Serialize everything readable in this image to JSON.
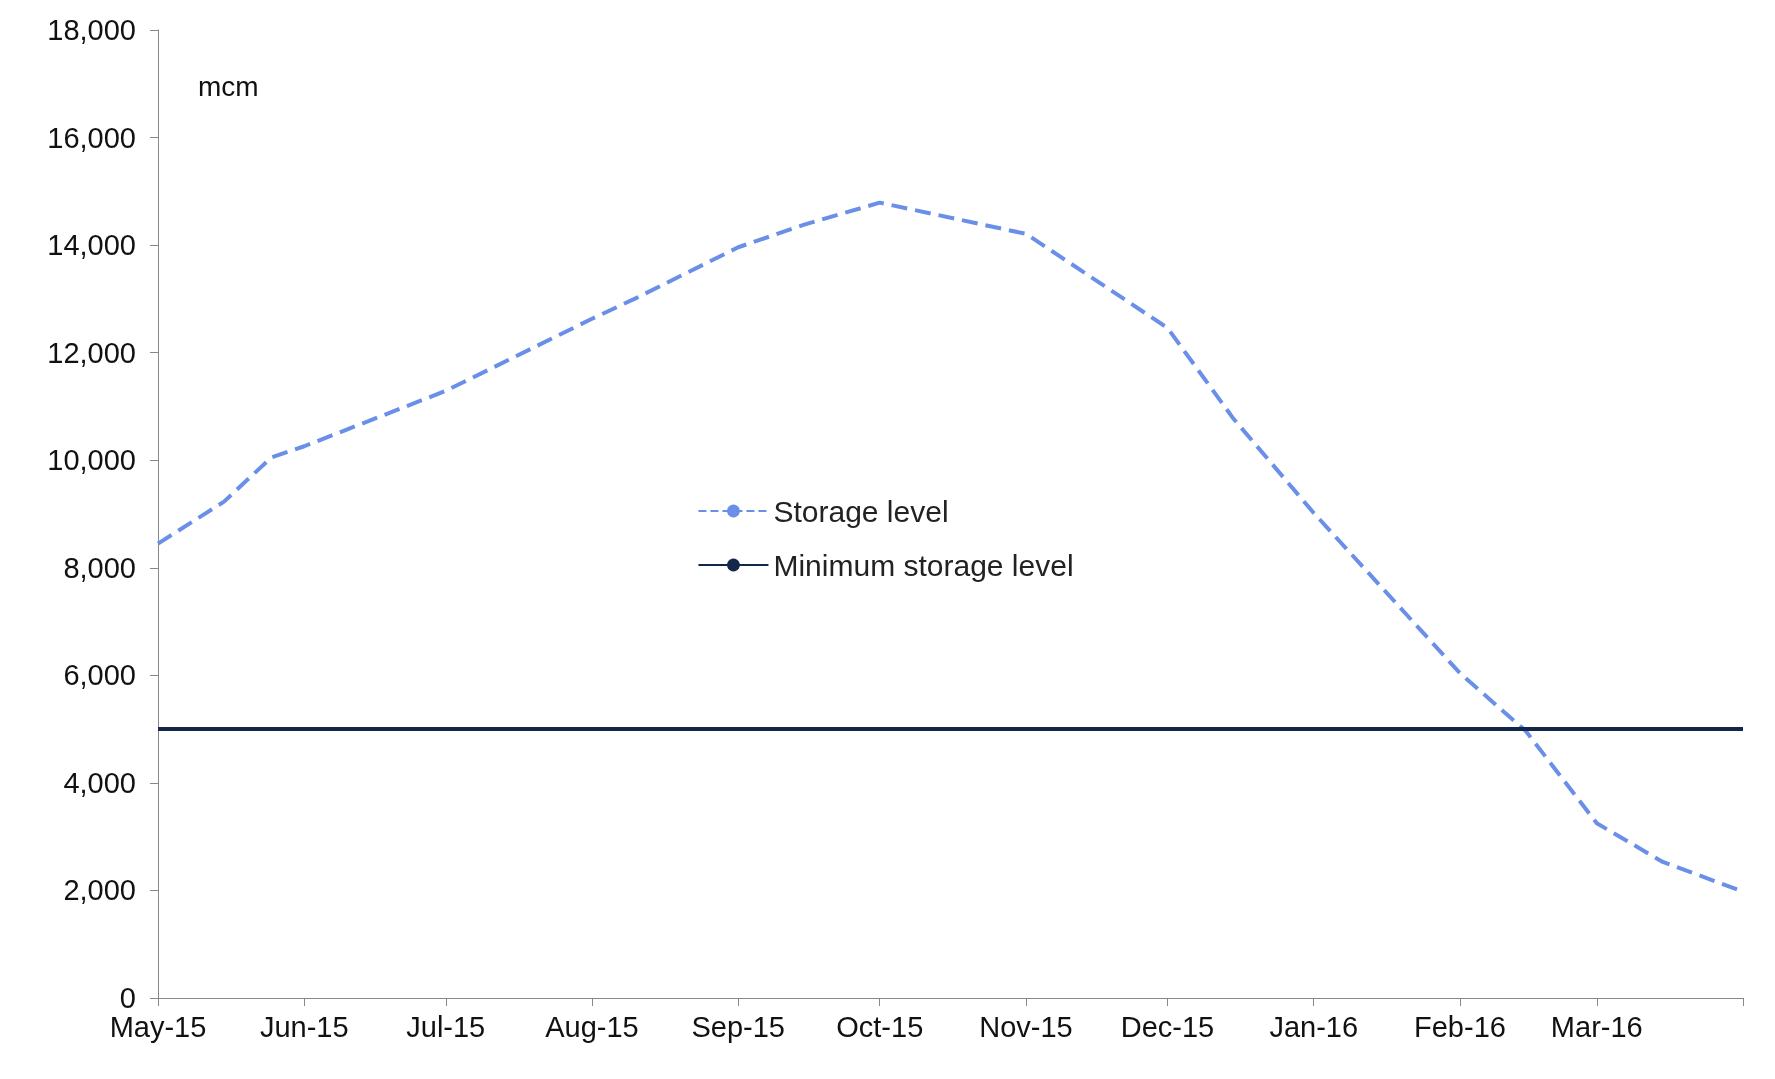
{
  "chart_data": {
    "type": "line",
    "ylabel": "mcm",
    "series": [
      {
        "name": "Storage level",
        "color": "#6a8fe8",
        "line_style": "dashed",
        "x": [
          "2015-05-01",
          "2015-05-15",
          "2015-05-25",
          "2015-06-01",
          "2015-07-01",
          "2015-08-01",
          "2015-08-10",
          "2015-09-01",
          "2015-09-15",
          "2015-10-01",
          "2015-11-01",
          "2015-12-01",
          "2015-12-15",
          "2016-01-01",
          "2016-02-01",
          "2016-02-15",
          "2016-03-01",
          "2016-03-15",
          "2016-04-01"
        ],
        "values": [
          8450,
          9230,
          10050,
          10260,
          11290,
          12630,
          13000,
          13960,
          14380,
          14790,
          14210,
          12460,
          10770,
          9020,
          6040,
          4960,
          3250,
          2530,
          1980
        ]
      },
      {
        "name": "Minimum storage level",
        "color": "#14264a",
        "line_style": "solid",
        "x": [
          "2015-05-01",
          "2016-04-01"
        ],
        "values": [
          5000,
          5000
        ]
      }
    ],
    "marker": "none",
    "grid": false,
    "legend": "center",
    "xlim": [
      "2015-05-01",
      "2016-04-01"
    ],
    "xticks": [
      {
        "value": "2015-05-01",
        "label": "May-15"
      },
      {
        "value": "2015-06-01",
        "label": "Jun-15"
      },
      {
        "value": "2015-07-01",
        "label": "Jul-15"
      },
      {
        "value": "2015-08-01",
        "label": "Aug-15"
      },
      {
        "value": "2015-09-01",
        "label": "Sep-15"
      },
      {
        "value": "2015-10-01",
        "label": "Oct-15"
      },
      {
        "value": "2015-11-01",
        "label": "Nov-15"
      },
      {
        "value": "2015-12-01",
        "label": "Dec-15"
      },
      {
        "value": "2016-01-01",
        "label": "Jan-16"
      },
      {
        "value": "2016-02-01",
        "label": "Feb-16"
      },
      {
        "value": "2016-03-01",
        "label": "Mar-16"
      },
      {
        "value": "2016-04-01",
        "label": null
      }
    ],
    "ylim": [
      0,
      18000
    ],
    "yticks": [
      {
        "value": 0,
        "label": "0"
      },
      {
        "value": 2000,
        "label": "2,000"
      },
      {
        "value": 4000,
        "label": "4,000"
      },
      {
        "value": 6000,
        "label": "6,000"
      },
      {
        "value": 8000,
        "label": "8,000"
      },
      {
        "value": 10000,
        "label": "10,000"
      },
      {
        "value": 12000,
        "label": "12,000"
      },
      {
        "value": 14000,
        "label": "14,000"
      },
      {
        "value": 16000,
        "label": "16,000"
      },
      {
        "value": 18000,
        "label": "18,000"
      }
    ]
  }
}
